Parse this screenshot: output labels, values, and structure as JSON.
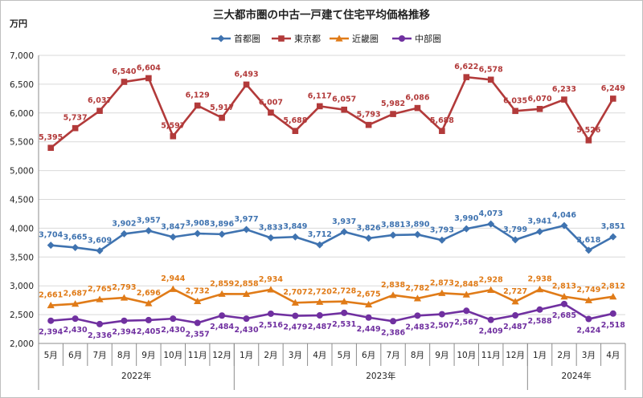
{
  "chart_data": {
    "type": "line",
    "title": "三大都市圏の中古一戸建て住宅平均価格推移",
    "unit_label": "万円",
    "ylim": [
      2000,
      7000
    ],
    "yticks": [
      2000,
      2500,
      3000,
      3500,
      4000,
      4500,
      5000,
      5500,
      6000,
      6500,
      7000
    ],
    "ytick_labels": [
      "2,000",
      "2,500",
      "3,000",
      "3,500",
      "4,000",
      "4,500",
      "5,000",
      "5,500",
      "6,000",
      "6,500",
      "7,000"
    ],
    "categories": [
      "5月",
      "6月",
      "7月",
      "8月",
      "9月",
      "10月",
      "11月",
      "12月",
      "1月",
      "2月",
      "3月",
      "4月",
      "5月",
      "6月",
      "7月",
      "8月",
      "9月",
      "10月",
      "11月",
      "12月",
      "1月",
      "2月",
      "3月",
      "4月"
    ],
    "year_groups": [
      {
        "label": "2022年",
        "count": 8
      },
      {
        "label": "2023年",
        "count": 12
      },
      {
        "label": "2024年",
        "count": 4
      }
    ],
    "legend_position": "top-center",
    "series": [
      {
        "name": "首都圏",
        "color": "#3f73b0",
        "marker": "diamond",
        "values": [
          3704,
          3665,
          3609,
          3902,
          3957,
          3847,
          3908,
          3896,
          3977,
          3833,
          3849,
          3712,
          3937,
          3826,
          3881,
          3890,
          3793,
          3990,
          4073,
          3799,
          3941,
          4046,
          3618,
          3851
        ],
        "labels": [
          "3,704",
          "3,665",
          "3,609",
          "3,902",
          "3,957",
          "3,847",
          "3,908",
          "3,896",
          "3,977",
          "3,833",
          "3,849",
          "3,712",
          "3,937",
          "3,826",
          "3,881",
          "3,890",
          "3,793",
          "3,990",
          "4,073",
          "3,799",
          "3,941",
          "4,046",
          "3,618",
          "3,851"
        ]
      },
      {
        "name": "東京都",
        "color": "#b23a3a",
        "marker": "square",
        "values": [
          5395,
          5737,
          6037,
          6540,
          6604,
          5597,
          6129,
          5917,
          6493,
          6007,
          5688,
          6117,
          6057,
          5793,
          5982,
          6086,
          5688,
          6622,
          6578,
          6035,
          6070,
          6233,
          5526,
          6249
        ],
        "labels": [
          "5,395",
          "5,737",
          "6,037",
          "6,540",
          "6,604",
          "5,597",
          "6,129",
          "5,917",
          "6,493",
          "6,007",
          "5,688",
          "6,117",
          "6,057",
          "5,793",
          "5,982",
          "6,086",
          "5,688",
          "6,622",
          "6,578",
          "6,035",
          "6,070",
          "6,233",
          "5,526",
          "6,249"
        ]
      },
      {
        "name": "近畿圏",
        "color": "#e07b18",
        "marker": "triangle",
        "values": [
          2661,
          2687,
          2765,
          2793,
          2696,
          2944,
          2732,
          2859,
          2858,
          2934,
          2707,
          2720,
          2728,
          2675,
          2838,
          2782,
          2873,
          2848,
          2928,
          2727,
          2938,
          2813,
          2749,
          2812
        ],
        "labels": [
          "2,661",
          "2,687",
          "2,765",
          "2,793",
          "2,696",
          "2,944",
          "2,732",
          "2,859",
          "2,858",
          "2,934",
          "2,707",
          "2,720",
          "2,728",
          "2,675",
          "2,838",
          "2,782",
          "2,873",
          "2,848",
          "2,928",
          "2,727",
          "2,938",
          "2,813",
          "2,749",
          "2,812"
        ]
      },
      {
        "name": "中部圏",
        "color": "#7030a0",
        "marker": "circle",
        "values": [
          2394,
          2430,
          2336,
          2394,
          2405,
          2430,
          2357,
          2484,
          2430,
          2516,
          2479,
          2487,
          2531,
          2449,
          2386,
          2483,
          2507,
          2567,
          2409,
          2487,
          2588,
          2685,
          2424,
          2518
        ],
        "labels": [
          "2,394",
          "2,430",
          "2,336",
          "2,394",
          "2,405",
          "2,430",
          "2,357",
          "2,484",
          "2,430",
          "2,516",
          "2,479",
          "2,487",
          "2,531",
          "2,449",
          "2,386",
          "2,483",
          "2,507",
          "2,567",
          "2,409",
          "2,487",
          "2,588",
          "2,685",
          "2,424",
          "2,518"
        ]
      }
    ]
  }
}
